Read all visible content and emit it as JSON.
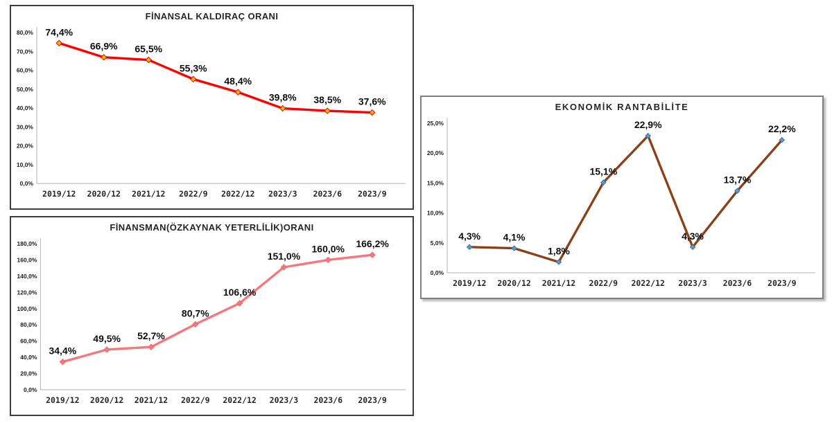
{
  "page": {
    "background_color": "#ffffff"
  },
  "chart_data": [
    {
      "type": "line",
      "title": "FİNANSAL KALDIRAÇ ORANI",
      "categories": [
        "2019/12",
        "2020/12",
        "2021/12",
        "2022/9",
        "2022/12",
        "2023/3",
        "2023/6",
        "2023/9"
      ],
      "values": [
        74.4,
        66.9,
        65.5,
        55.3,
        48.4,
        39.8,
        38.5,
        37.6
      ],
      "data_labels": [
        "74,4%",
        "66,9%",
        "65,5%",
        "55,3%",
        "48,4%",
        "39,8%",
        "38,5%",
        "37,6%"
      ],
      "ytick_labels": [
        "0,0%",
        "10,0%",
        "20,0%",
        "30,0%",
        "40,0%",
        "50,0%",
        "60,0%",
        "70,0%",
        "80,0%"
      ],
      "xlabel": "",
      "ylabel": "",
      "ylim": [
        0,
        80
      ],
      "ystep": 10,
      "grid": false,
      "legend_position": "none",
      "line_color": "#FE0000",
      "line_width": 3.4,
      "marker": {
        "shape": "diamond",
        "fill": "#FFB900",
        "stroke": "#E00000",
        "size": 4
      },
      "axis_color": "#BFBFBF"
    },
    {
      "type": "line",
      "title": "FİNANSMAN(ÖZKAYNAK YETERLİLİK)ORANI",
      "categories": [
        "2019/12",
        "2020/12",
        "2021/12",
        "2022/9",
        "2022/12",
        "2023/3",
        "2023/6",
        "2023/9"
      ],
      "values": [
        34.4,
        49.5,
        52.7,
        80.7,
        106.6,
        151.0,
        160.0,
        166.2
      ],
      "data_labels": [
        "34,4%",
        "49,5%",
        "52,7%",
        "80,7%",
        "106,6%",
        "151,0%",
        "160,0%",
        "166,2%"
      ],
      "ytick_labels": [
        "0,0%",
        "20,0%",
        "40,0%",
        "60,0%",
        "80,0%",
        "100,0%",
        "120,0%",
        "140,0%",
        "160,0%",
        "180,0%"
      ],
      "xlabel": "",
      "ylabel": "",
      "ylim": [
        0,
        180
      ],
      "ystep": 20,
      "grid": false,
      "legend_position": "none",
      "line_color": "#F4787D",
      "line_width": 3.4,
      "marker": {
        "shape": "diamond",
        "fill": "#F4787D",
        "stroke": "#EE666D",
        "size": 4
      },
      "axis_color": "#BFBFBF"
    },
    {
      "type": "line",
      "title": "EKONOMİK RANTABİLİTE",
      "categories": [
        "2019/12",
        "2020/12",
        "2021/12",
        "2022/9",
        "2022/12",
        "2023/3",
        "2023/6",
        "2023/9"
      ],
      "values": [
        4.3,
        4.1,
        1.8,
        15.1,
        22.9,
        4.3,
        13.7,
        22.2
      ],
      "data_labels": [
        "4,3%",
        "4,1%",
        "1,8%",
        "15,1%",
        "22,9%",
        "4,3%",
        "13,7%",
        "22,2%"
      ],
      "ytick_labels": [
        "0,0%",
        "5,0%",
        "10,0%",
        "15,0%",
        "20,0%",
        "25,0%"
      ],
      "xlabel": "",
      "ylabel": "",
      "ylim": [
        0,
        25
      ],
      "ystep": 5,
      "grid": false,
      "legend_position": "none",
      "line_color": "#8A4117",
      "line_width": 3.4,
      "marker": {
        "shape": "diamond",
        "fill": "#5B9BD5",
        "stroke": "#41719C",
        "size": 3.6
      },
      "axis_color": "#BFBFBF"
    }
  ]
}
